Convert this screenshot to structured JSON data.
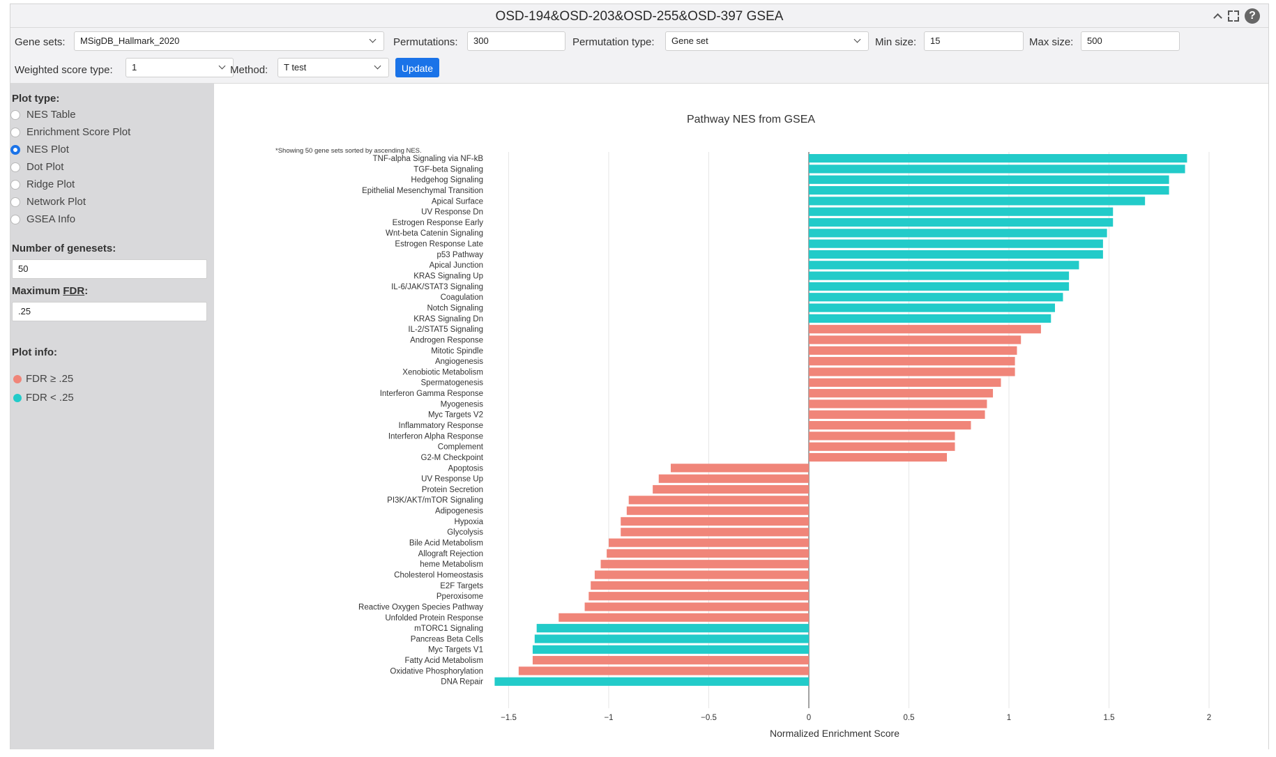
{
  "window": {
    "title": "OSD-194&OSD-203&OSD-255&OSD-397 GSEA"
  },
  "controls": {
    "gene_sets_label": "Gene sets:",
    "gene_sets_value": "MSigDB_Hallmark_2020",
    "permutations_label": "Permutations:",
    "permutations_value": "300",
    "permutation_type_label": "Permutation type:",
    "permutation_type_value": "Gene set",
    "min_size_label": "Min size:",
    "min_size_value": "15",
    "max_size_label": "Max size:",
    "max_size_value": "500",
    "weighted_label": "Weighted score type:",
    "weighted_value": "1",
    "method_label": "Method:",
    "method_value": "T test",
    "update_label": "Update"
  },
  "sidebar": {
    "plot_type_label": "Plot type:",
    "plot_types": [
      {
        "label": "NES Table",
        "selected": false
      },
      {
        "label": "Enrichment Score Plot",
        "selected": false
      },
      {
        "label": "NES Plot",
        "selected": true
      },
      {
        "label": "Dot Plot",
        "selected": false
      },
      {
        "label": "Ridge Plot",
        "selected": false
      },
      {
        "label": "Network Plot",
        "selected": false
      },
      {
        "label": "GSEA Info",
        "selected": false
      }
    ],
    "num_genesets_label": "Number of genesets:",
    "num_genesets_value": "50",
    "max_fdr_label_prefix": "Maximum ",
    "max_fdr_label_term": "FDR",
    "max_fdr_label_suffix": ":",
    "max_fdr_value": ".25",
    "plot_info_label": "Plot info:",
    "legend": [
      {
        "label": "FDR ≥ .25",
        "color": "#f08579"
      },
      {
        "label": "FDR < .25",
        "color": "#22cbc9"
      }
    ]
  },
  "chart_data": {
    "type": "bar",
    "orientation": "horizontal",
    "title": "Pathway NES from GSEA",
    "note": "*Showing 50 gene sets sorted by ascending NES.",
    "xlabel": "Normalized Enrichment Score",
    "xlim": [
      -1.6,
      2.05
    ],
    "xticks": [
      -1.5,
      -1,
      -0.5,
      0,
      0.5,
      1,
      1.5,
      2
    ],
    "xtick_labels": [
      "−1.5",
      "−1",
      "−0.5",
      "0",
      "0.5",
      "1",
      "1.5",
      "2"
    ],
    "grid": true,
    "colors": {
      "fdr_ge_025": "#f08579",
      "fdr_lt_025": "#22cbc9"
    },
    "bars": [
      {
        "name": "TNF-alpha Signaling via NF-kB",
        "nes": 1.89,
        "significant": true
      },
      {
        "name": "TGF-beta Signaling",
        "nes": 1.88,
        "significant": true
      },
      {
        "name": "Hedgehog Signaling",
        "nes": 1.8,
        "significant": true
      },
      {
        "name": "Epithelial Mesenchymal Transition",
        "nes": 1.8,
        "significant": true
      },
      {
        "name": "Apical Surface",
        "nes": 1.68,
        "significant": true
      },
      {
        "name": "UV Response Dn",
        "nes": 1.52,
        "significant": true
      },
      {
        "name": "Estrogen Response Early",
        "nes": 1.52,
        "significant": true
      },
      {
        "name": "Wnt-beta Catenin Signaling",
        "nes": 1.49,
        "significant": true
      },
      {
        "name": "Estrogen Response Late",
        "nes": 1.47,
        "significant": true
      },
      {
        "name": "p53 Pathway",
        "nes": 1.47,
        "significant": true
      },
      {
        "name": "Apical Junction",
        "nes": 1.35,
        "significant": true
      },
      {
        "name": "KRAS Signaling Up",
        "nes": 1.3,
        "significant": true
      },
      {
        "name": "IL-6/JAK/STAT3 Signaling",
        "nes": 1.3,
        "significant": true
      },
      {
        "name": "Coagulation",
        "nes": 1.27,
        "significant": true
      },
      {
        "name": "Notch Signaling",
        "nes": 1.23,
        "significant": true
      },
      {
        "name": "KRAS Signaling Dn",
        "nes": 1.21,
        "significant": true
      },
      {
        "name": "IL-2/STAT5 Signaling",
        "nes": 1.16,
        "significant": false
      },
      {
        "name": "Androgen Response",
        "nes": 1.06,
        "significant": false
      },
      {
        "name": "Mitotic Spindle",
        "nes": 1.04,
        "significant": false
      },
      {
        "name": "Angiogenesis",
        "nes": 1.03,
        "significant": false
      },
      {
        "name": "Xenobiotic Metabolism",
        "nes": 1.03,
        "significant": false
      },
      {
        "name": "Spermatogenesis",
        "nes": 0.96,
        "significant": false
      },
      {
        "name": "Interferon Gamma Response",
        "nes": 0.92,
        "significant": false
      },
      {
        "name": "Myogenesis",
        "nes": 0.89,
        "significant": false
      },
      {
        "name": "Myc Targets V2",
        "nes": 0.88,
        "significant": false
      },
      {
        "name": "Inflammatory Response",
        "nes": 0.81,
        "significant": false
      },
      {
        "name": "Interferon Alpha Response",
        "nes": 0.73,
        "significant": false
      },
      {
        "name": "Complement",
        "nes": 0.73,
        "significant": false
      },
      {
        "name": "G2-M Checkpoint",
        "nes": 0.69,
        "significant": false
      },
      {
        "name": "Apoptosis",
        "nes": -0.69,
        "significant": false
      },
      {
        "name": "UV Response Up",
        "nes": -0.75,
        "significant": false
      },
      {
        "name": "Protein Secretion",
        "nes": -0.78,
        "significant": false
      },
      {
        "name": "PI3K/AKT/mTOR  Signaling",
        "nes": -0.9,
        "significant": false
      },
      {
        "name": "Adipogenesis",
        "nes": -0.91,
        "significant": false
      },
      {
        "name": "Hypoxia",
        "nes": -0.94,
        "significant": false
      },
      {
        "name": "Glycolysis",
        "nes": -0.94,
        "significant": false
      },
      {
        "name": "Bile Acid Metabolism",
        "nes": -1.0,
        "significant": false
      },
      {
        "name": "Allograft Rejection",
        "nes": -1.01,
        "significant": false
      },
      {
        "name": "heme Metabolism",
        "nes": -1.04,
        "significant": false
      },
      {
        "name": "Cholesterol Homeostasis",
        "nes": -1.07,
        "significant": false
      },
      {
        "name": "E2F Targets",
        "nes": -1.09,
        "significant": false
      },
      {
        "name": "Pperoxisome",
        "nes": -1.1,
        "significant": false
      },
      {
        "name": "Reactive Oxygen Species Pathway",
        "nes": -1.12,
        "significant": false
      },
      {
        "name": "Unfolded Protein Response",
        "nes": -1.25,
        "significant": false
      },
      {
        "name": "mTORC1 Signaling",
        "nes": -1.36,
        "significant": true
      },
      {
        "name": "Pancreas Beta Cells",
        "nes": -1.37,
        "significant": true
      },
      {
        "name": "Myc Targets V1",
        "nes": -1.38,
        "significant": true
      },
      {
        "name": "Fatty Acid Metabolism",
        "nes": -1.38,
        "significant": false
      },
      {
        "name": "Oxidative Phosphorylation",
        "nes": -1.45,
        "significant": false
      },
      {
        "name": "DNA Repair",
        "nes": -1.57,
        "significant": true
      }
    ]
  }
}
